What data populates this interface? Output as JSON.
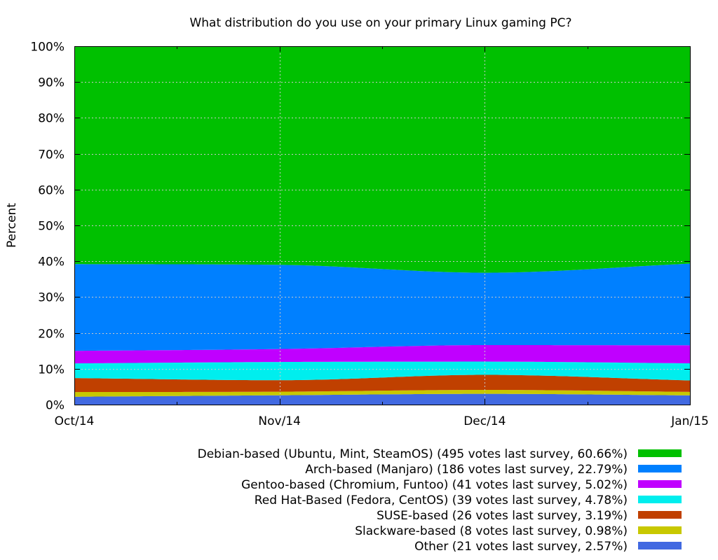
{
  "chart_data": {
    "type": "area",
    "stacked": true,
    "title": "What distribution do you use on your primary Linux gaming PC?",
    "ylabel": "Percent",
    "xlabel": "",
    "ylim": [
      0,
      100
    ],
    "yticks": [
      "0%",
      "10%",
      "20%",
      "30%",
      "40%",
      "50%",
      "60%",
      "70%",
      "80%",
      "90%",
      "100%"
    ],
    "x": [
      "Oct/14",
      "Nov/14",
      "Dec/14",
      "Jan/15"
    ],
    "grid": true,
    "legend_position": "bottom-right",
    "series": [
      {
        "name": "Other (21 votes last survey, 2.57%)",
        "color": "#4169e1",
        "values": [
          2.2,
          2.6,
          3.0,
          2.57
        ]
      },
      {
        "name": "Slackware-based (8 votes last survey, 0.98%)",
        "color": "#c8c800",
        "values": [
          1.3,
          1.0,
          1.1,
          0.98
        ]
      },
      {
        "name": "SUSE-based (26 votes last survey, 3.19%)",
        "color": "#c04000",
        "values": [
          3.9,
          3.2,
          4.2,
          3.19
        ]
      },
      {
        "name": "Red Hat-Based (Fedora, CentOS) (39 votes last survey, 4.78%)",
        "color": "#00eeee",
        "values": [
          4.1,
          5.1,
          3.7,
          4.78
        ]
      },
      {
        "name": "Gentoo-based (Chromium, Funtoo) (41 votes last survey, 5.02%)",
        "color": "#c000ff",
        "values": [
          3.5,
          3.6,
          4.6,
          5.02
        ]
      },
      {
        "name": "Arch-based (Manjaro) (186 votes last survey, 22.79%)",
        "color": "#0080ff",
        "values": [
          24.2,
          23.5,
          20.2,
          22.79
        ]
      },
      {
        "name": "Debian-based (Ubuntu, Mint, SteamOS) (495 votes last survey, 60.66%)",
        "color": "#00c000",
        "values": [
          60.8,
          61.0,
          63.2,
          60.66
        ]
      }
    ]
  }
}
